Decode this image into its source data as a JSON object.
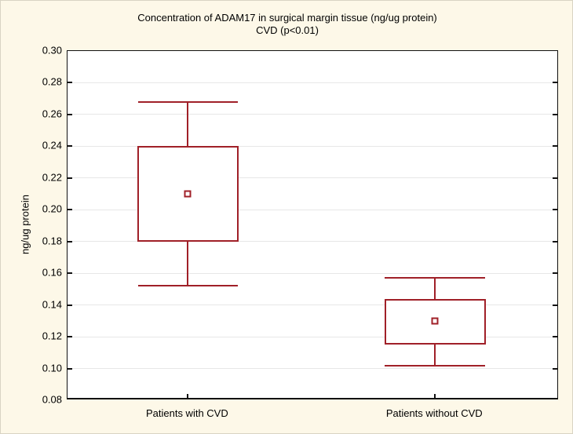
{
  "figure": {
    "background_color": "#FDF8E8",
    "plot_background": "#FFFFFF",
    "grid_color": "#E7E7E7",
    "axis_color": "#111111",
    "box_color": "#A02028"
  },
  "chart_data": {
    "type": "box",
    "title": "Concentration of ADAM17 in surgical margin tissue (ng/ug protein)",
    "subtitle": "CVD (p<0.01)",
    "ylabel": "ng/ug protein",
    "xlabel": "",
    "ylim": [
      0.08,
      0.3
    ],
    "ytick_step": 0.02,
    "ytick_labels": [
      "0.30",
      "0.28",
      "0.26",
      "0.24",
      "0.22",
      "0.20",
      "0.18",
      "0.16",
      "0.14",
      "0.12",
      "0.10",
      "0.08"
    ],
    "grid": "horizontal",
    "legend_position": "none",
    "marker": "mean-square",
    "categories": [
      "Patients with CVD",
      "Patients without CVD"
    ],
    "series": [
      {
        "category": "Patients with CVD",
        "whisker_low": 0.152,
        "q1": 0.18,
        "mean": 0.21,
        "q3": 0.24,
        "whisker_high": 0.268
      },
      {
        "category": "Patients without CVD",
        "whisker_low": 0.102,
        "q1": 0.115,
        "mean": 0.13,
        "q3": 0.144,
        "whisker_high": 0.157
      }
    ],
    "layout_hints": {
      "center_fractions": [
        0.245,
        0.748
      ],
      "box_width_fraction": 0.206,
      "cap_width_fraction": 0.102
    }
  }
}
